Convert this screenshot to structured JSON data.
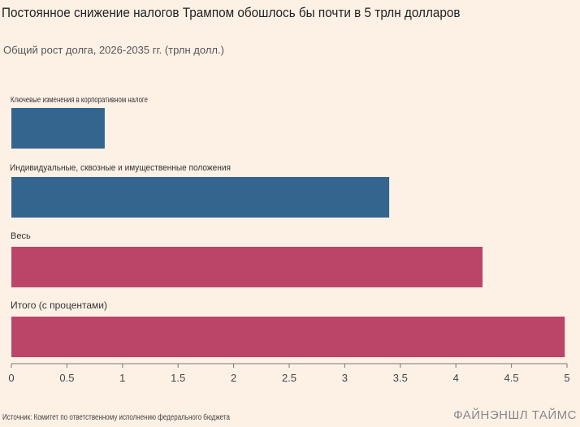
{
  "header": {
    "title": "Постоянное снижение налогов Трампом обошлось бы почти в 5 трлн долларов",
    "subtitle": "Общий рост долга, 2026-2035 гг. (трлн долл.)"
  },
  "footer": {
    "source": "Источник: Комитет по ответственному исполнению федерального бюджета",
    "brand": "ФАЙНЭНШЛ ТАЙМС"
  },
  "colors": {
    "blue": "#33658f",
    "crimson": "#bb4569",
    "background": "#fdf1e6"
  },
  "chart_data": {
    "type": "bar",
    "orientation": "horizontal",
    "categories": [
      "Ключевые изменения в корпоративном налоге",
      "Индивидуальные, сквозные и имущественные положения",
      "Весь",
      "Итого (с процентами)"
    ],
    "values": [
      0.84,
      3.4,
      4.24,
      4.98
    ],
    "bar_colors": [
      "#33658f",
      "#33658f",
      "#bb4569",
      "#bb4569"
    ],
    "xlim": [
      0,
      5
    ],
    "xticks": [
      "0",
      "0.5",
      "1",
      "1.5",
      "2",
      "2.5",
      "3",
      "3.5",
      "4",
      "4.5",
      "5"
    ],
    "xlabel": "",
    "ylabel": "",
    "grid": false,
    "legend": "none"
  }
}
